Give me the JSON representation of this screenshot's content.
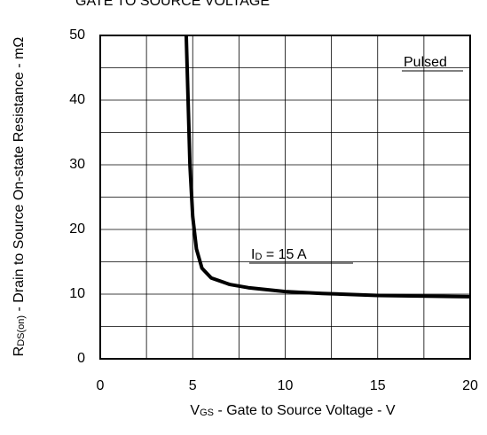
{
  "chart_data": {
    "type": "line",
    "title": "GATE TO SOURCE VOLTAGE",
    "x_label": {
      "main": "V",
      "sub": "GS",
      "rest": " - Gate to Source Voltage - V"
    },
    "y_label": {
      "main": "R",
      "sub": "DS(on)",
      "rest": " - Drain to Source On-state Resistance - mΩ"
    },
    "annotations": [
      {
        "main": "Pulsed"
      },
      {
        "main": "I",
        "sub": "D",
        "rest": " = 15 A"
      }
    ],
    "x": [
      4.65,
      4.75,
      4.85,
      5.0,
      5.2,
      5.5,
      6,
      7,
      8,
      10,
      12,
      15,
      20
    ],
    "values": [
      50,
      40,
      30,
      22,
      17,
      14,
      12.5,
      11.5,
      11,
      10.4,
      10.1,
      9.8,
      9.6
    ],
    "color": "#000000",
    "xlim": [
      0,
      20
    ],
    "xticks": [
      0,
      5,
      10,
      15,
      20
    ],
    "ylim": [
      0,
      50
    ],
    "yticks": [
      0,
      10,
      20,
      30,
      40,
      50
    ],
    "grid": true,
    "minor_grid": true
  }
}
